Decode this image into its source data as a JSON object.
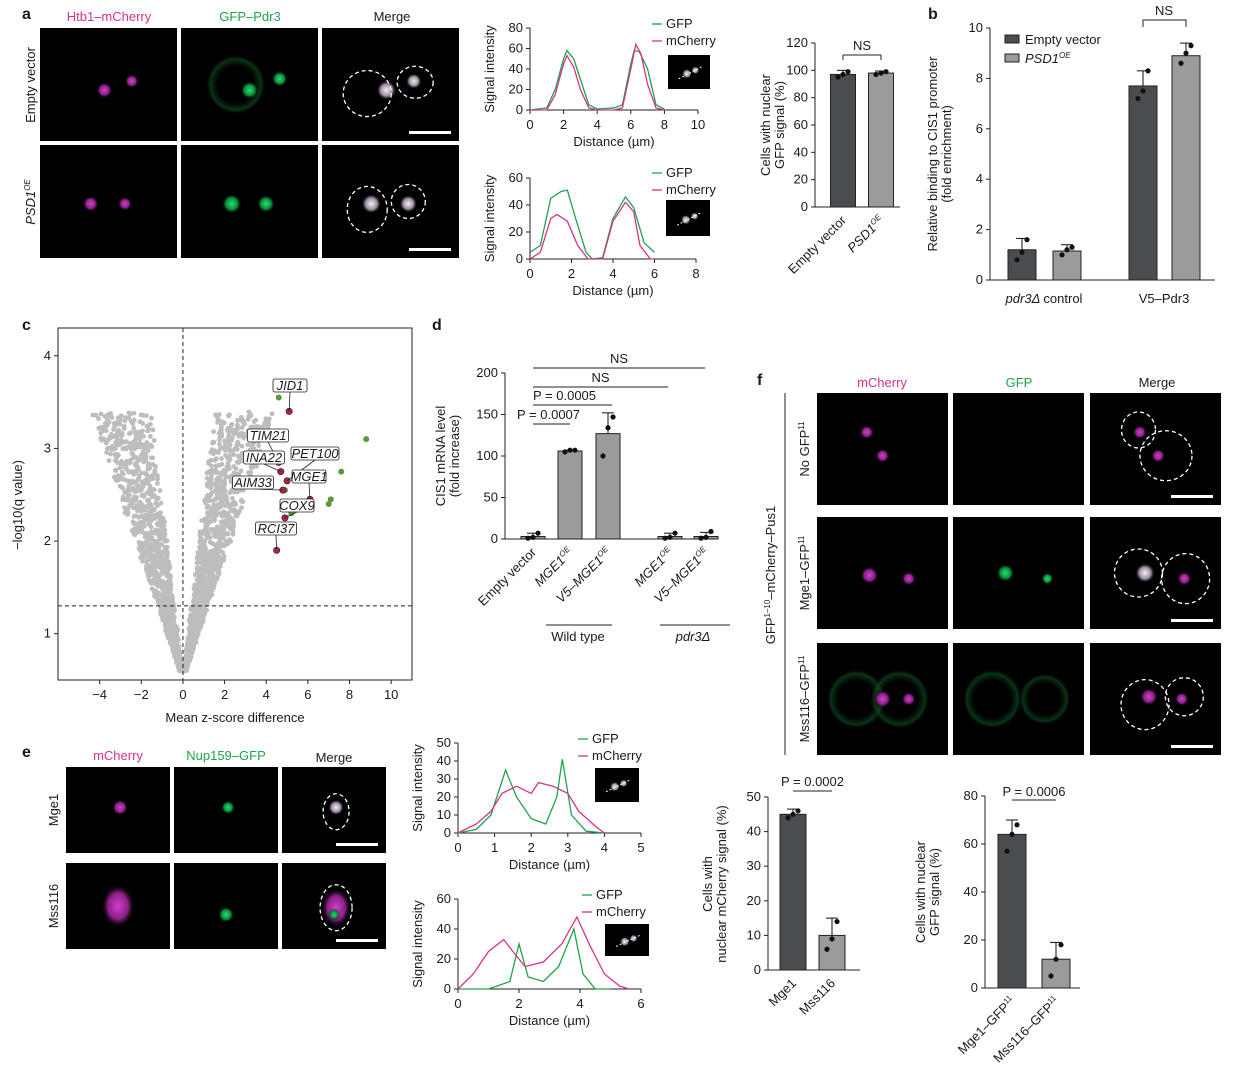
{
  "colors": {
    "gfp": "#1ea34a",
    "mcherry": "#d6338a",
    "bar_dark": "#4a4d50",
    "bar_light": "#9b9b9b",
    "scatter": "#bdbdbd",
    "hit_green": "#5a9a3c",
    "hit_red": "#b0204a"
  },
  "panel_a": {
    "letter": "a",
    "col_labels": [
      "Htb1–mCherry",
      "GFP–Pdr3",
      "Merge"
    ],
    "row_labels": [
      "Empty vector",
      "PSD1"
    ],
    "row2_sup": "OE"
  },
  "panel_b": {
    "letter": "b"
  },
  "panel_c": {
    "letter": "c"
  },
  "panel_d": {
    "letter": "d"
  },
  "panel_e": {
    "letter": "e",
    "col_labels": [
      "mCherry",
      "Nup159–GFP",
      "Merge"
    ],
    "row_labels": [
      "Mge1",
      "Mss116"
    ]
  },
  "panel_f": {
    "letter": "f",
    "col_labels": [
      "mCherry",
      "GFP",
      "Merge"
    ],
    "row_labels": [
      "No GFP",
      "Mge1–GFP",
      "Mss116–GFP"
    ],
    "row_sup": "11",
    "side_label": "GFP",
    "side_sup": "1–10",
    "side_label2": "–mCherry–Pus1"
  },
  "chart_data": [
    {
      "id": "a_profile_1",
      "type": "line",
      "xlabel": "Distance (µm)",
      "ylabel": "Signal intensity",
      "xlim": [
        0,
        10
      ],
      "ylim": [
        0,
        80
      ],
      "xticks": [
        0,
        2,
        4,
        6,
        8,
        10
      ],
      "yticks": [
        0,
        20,
        40,
        60,
        80
      ],
      "legend": "top-right",
      "series": [
        {
          "name": "GFP",
          "color": "#1ea34a",
          "points": [
            [
              0,
              0
            ],
            [
              1,
              2
            ],
            [
              1.5,
              20
            ],
            [
              2,
              50
            ],
            [
              2.2,
              58
            ],
            [
              2.6,
              50
            ],
            [
              3,
              30
            ],
            [
              3.5,
              5
            ],
            [
              4,
              1
            ],
            [
              5,
              2
            ],
            [
              5.5,
              5
            ],
            [
              6,
              45
            ],
            [
              6.2,
              58
            ],
            [
              6.5,
              57
            ],
            [
              7,
              40
            ],
            [
              7.5,
              5
            ],
            [
              8,
              1
            ]
          ]
        },
        {
          "name": "mCherry",
          "color": "#d6338a",
          "points": [
            [
              0,
              0
            ],
            [
              1,
              0
            ],
            [
              1.5,
              15
            ],
            [
              2,
              45
            ],
            [
              2.2,
              53
            ],
            [
              2.6,
              42
            ],
            [
              3,
              20
            ],
            [
              3.5,
              2
            ],
            [
              4,
              0
            ],
            [
              5,
              0
            ],
            [
              5.5,
              2
            ],
            [
              6,
              40
            ],
            [
              6.3,
              64
            ],
            [
              6.6,
              55
            ],
            [
              7,
              25
            ],
            [
              7.5,
              2
            ],
            [
              8,
              0
            ]
          ]
        }
      ]
    },
    {
      "id": "a_profile_2",
      "type": "line",
      "xlabel": "Distance (µm)",
      "ylabel": "Signal intensity",
      "xlim": [
        0,
        8
      ],
      "ylim": [
        0,
        60
      ],
      "xticks": [
        0,
        2,
        4,
        6,
        8
      ],
      "yticks": [
        0,
        20,
        40,
        60
      ],
      "legend": "top-right",
      "series": [
        {
          "name": "GFP",
          "color": "#1ea34a",
          "points": [
            [
              0,
              5
            ],
            [
              0.5,
              10
            ],
            [
              1,
              45
            ],
            [
              1.5,
              50
            ],
            [
              1.8,
              51
            ],
            [
              2.2,
              30
            ],
            [
              2.7,
              5
            ],
            [
              3,
              0
            ],
            [
              3.5,
              1
            ],
            [
              4,
              30
            ],
            [
              4.6,
              46
            ],
            [
              5,
              38
            ],
            [
              5.5,
              12
            ],
            [
              6,
              5
            ]
          ]
        },
        {
          "name": "mCherry",
          "color": "#d6338a",
          "points": [
            [
              0,
              0
            ],
            [
              0.5,
              5
            ],
            [
              1,
              30
            ],
            [
              1.3,
              33
            ],
            [
              1.8,
              28
            ],
            [
              2.3,
              10
            ],
            [
              2.8,
              0
            ],
            [
              3.5,
              0
            ],
            [
              4,
              28
            ],
            [
              4.6,
              42
            ],
            [
              5,
              35
            ],
            [
              5.3,
              10
            ],
            [
              5.8,
              0
            ],
            [
              6,
              0
            ]
          ]
        }
      ]
    },
    {
      "id": "a_bar",
      "type": "bar",
      "ylabel": "Cells with nuclear GFP signal (%)",
      "ylim": [
        0,
        120
      ],
      "yticks": [
        0,
        20,
        40,
        60,
        80,
        100,
        120
      ],
      "categories": [
        "Empty vector",
        "PSD1"
      ],
      "category_sup": [
        "",
        "OE"
      ],
      "values": [
        97,
        98
      ],
      "errors": [
        3,
        1.5
      ],
      "points": [
        [
          95,
          97,
          99
        ],
        [
          97,
          98,
          99
        ]
      ],
      "bar_colors": [
        "#4a4d50",
        "#9b9b9b"
      ],
      "annotations": [
        "NS"
      ]
    },
    {
      "id": "b_bar",
      "type": "bar",
      "ylabel": "Relative binding to CIS1 promoter (fold enrichment)",
      "ylim": [
        0,
        10
      ],
      "yticks": [
        0,
        2,
        4,
        6,
        8,
        10
      ],
      "groups": [
        "pdr3Δ control",
        "V5–Pdr3"
      ],
      "series": [
        {
          "name": "Empty vector",
          "color": "#4a4d50",
          "values": [
            1.2,
            7.7
          ],
          "errors": [
            0.45,
            0.6
          ],
          "points": [
            [
              0.8,
              1.1,
              1.6
            ],
            [
              7.2,
              7.5,
              8.3
            ]
          ]
        },
        {
          "name": "PSD1",
          "sup": "OE",
          "color": "#9b9b9b",
          "values": [
            1.15,
            8.9
          ],
          "errors": [
            0.25,
            0.5
          ],
          "points": [
            [
              1.0,
              1.2,
              1.3
            ],
            [
              8.6,
              9.0,
              9.3
            ]
          ]
        }
      ],
      "legend": "top-left",
      "annotations": [
        "NS"
      ]
    },
    {
      "id": "c_volcano",
      "type": "scatter",
      "xlabel": "Mean z-score difference",
      "ylabel": "−log10(q value)",
      "xlim": [
        -6,
        11
      ],
      "ylim": [
        0.5,
        4.3
      ],
      "xticks": [
        -4,
        -2,
        0,
        2,
        4,
        6,
        8,
        10
      ],
      "yticks": [
        1,
        2,
        3,
        4
      ],
      "thresholds": {
        "x": 0,
        "y": 1.3
      },
      "highlighted": [
        {
          "label": "JID1",
          "x": 5.1,
          "y": 3.4
        },
        {
          "label": "TIM21",
          "x": 4.6,
          "y": 2.9
        },
        {
          "label": "INA22",
          "x": 4.5,
          "y": 2.75
        },
        {
          "label": "PET100",
          "x": 7.0,
          "y": 2.85
        },
        {
          "label": "MGE1",
          "x": 6.0,
          "y": 2.45
        },
        {
          "label": "AIM33",
          "x": 4.8,
          "y": 2.6
        },
        {
          "label": "COX9",
          "x": 4.9,
          "y": 2.45
        },
        {
          "label": "RCI37",
          "x": 4.5,
          "y": 1.9
        }
      ],
      "green_points": [
        [
          4.6,
          3.55
        ],
        [
          8.8,
          3.1
        ],
        [
          7.6,
          2.75
        ],
        [
          7.1,
          2.45
        ],
        [
          7.0,
          2.4
        ],
        [
          6.2,
          2.7
        ],
        [
          4.9,
          2.55
        ],
        [
          5.2,
          2.3
        ]
      ],
      "red_points": [
        [
          5.1,
          3.4
        ],
        [
          4.6,
          2.85
        ],
        [
          4.7,
          2.75
        ],
        [
          5.0,
          2.65
        ],
        [
          6.1,
          2.45
        ],
        [
          4.8,
          2.55
        ],
        [
          4.9,
          2.25
        ],
        [
          4.5,
          1.9
        ]
      ]
    },
    {
      "id": "d_bar",
      "type": "bar",
      "ylabel": "CIS1 mRNA level (fold increase)",
      "ylim": [
        0,
        200
      ],
      "yticks": [
        0,
        50,
        100,
        150,
        200
      ],
      "categories": [
        "Empty vector",
        "MGE1",
        "V5–MGE1",
        "MGE1",
        "V5–MGE1"
      ],
      "category_sup": [
        "",
        "OE",
        "OE",
        "OE",
        "OE"
      ],
      "values": [
        3,
        106,
        127,
        3,
        3
      ],
      "errors": [
        4,
        1,
        25,
        4,
        5
      ],
      "points": [
        [
          1,
          2,
          7
        ],
        [
          105,
          107,
          107
        ],
        [
          100,
          134,
          147
        ],
        [
          1,
          2,
          7
        ],
        [
          1,
          2,
          9
        ]
      ],
      "groups": [
        "Wild type",
        "pdr3Δ"
      ],
      "annotations": [
        "NS",
        "NS",
        "P = 0.0005",
        "P = 0.0007"
      ]
    },
    {
      "id": "e_profile_1",
      "type": "line",
      "xlabel": "Distance (µm)",
      "ylabel": "Signal intensity",
      "xlim": [
        0,
        5
      ],
      "ylim": [
        0,
        50
      ],
      "xticks": [
        0,
        1,
        2,
        3,
        4,
        5
      ],
      "yticks": [
        0,
        10,
        20,
        30,
        40,
        50
      ],
      "legend": "top-right",
      "series": [
        {
          "name": "GFP",
          "color": "#1ea34a",
          "points": [
            [
              0,
              0
            ],
            [
              0.5,
              2
            ],
            [
              0.9,
              10
            ],
            [
              1.3,
              35
            ],
            [
              1.6,
              20
            ],
            [
              2,
              8
            ],
            [
              2.4,
              5
            ],
            [
              2.7,
              20
            ],
            [
              2.85,
              41
            ],
            [
              3.1,
              10
            ],
            [
              3.5,
              1
            ],
            [
              4,
              0
            ]
          ]
        },
        {
          "name": "mCherry",
          "color": "#d6338a",
          "points": [
            [
              0,
              0
            ],
            [
              0.5,
              5
            ],
            [
              0.9,
              12
            ],
            [
              1.2,
              22
            ],
            [
              1.6,
              26
            ],
            [
              2,
              22
            ],
            [
              2.2,
              28
            ],
            [
              2.6,
              26
            ],
            [
              3,
              22
            ],
            [
              3.3,
              12
            ],
            [
              3.8,
              3
            ],
            [
              4,
              0
            ]
          ]
        }
      ]
    },
    {
      "id": "e_profile_2",
      "type": "line",
      "xlabel": "Distance (µm)",
      "ylabel": "Signal intensity",
      "xlim": [
        0,
        6
      ],
      "ylim": [
        0,
        60
      ],
      "xticks": [
        0,
        2,
        4,
        6
      ],
      "yticks": [
        0,
        20,
        40,
        60
      ],
      "legend": "top-right",
      "series": [
        {
          "name": "GFP",
          "color": "#1ea34a",
          "points": [
            [
              0,
              0
            ],
            [
              1,
              0
            ],
            [
              1.7,
              5
            ],
            [
              2,
              30
            ],
            [
              2.3,
              8
            ],
            [
              2.8,
              5
            ],
            [
              3.3,
              15
            ],
            [
              3.8,
              40
            ],
            [
              4.1,
              10
            ],
            [
              4.5,
              0
            ],
            [
              5,
              0
            ]
          ]
        },
        {
          "name": "mCherry",
          "color": "#d6338a",
          "points": [
            [
              0,
              0
            ],
            [
              0.5,
              10
            ],
            [
              1,
              25
            ],
            [
              1.5,
              33
            ],
            [
              1.8,
              25
            ],
            [
              2.2,
              15
            ],
            [
              2.8,
              18
            ],
            [
              3.4,
              30
            ],
            [
              3.9,
              48
            ],
            [
              4.3,
              30
            ],
            [
              4.8,
              10
            ],
            [
              5.3,
              2
            ],
            [
              5.6,
              0
            ]
          ]
        }
      ]
    },
    {
      "id": "f_bar_1",
      "type": "bar",
      "ylabel": "Cells with nuclear mCherry signal (%)",
      "ylim": [
        0,
        50
      ],
      "yticks": [
        0,
        10,
        20,
        30,
        40,
        50
      ],
      "categories": [
        "Mge1",
        "Mss116"
      ],
      "category_sup": [
        "",
        ""
      ],
      "values": [
        45,
        10
      ],
      "errors": [
        1.5,
        5
      ],
      "points": [
        [
          44,
          45,
          46
        ],
        [
          6,
          9,
          14
        ]
      ],
      "bar_colors": [
        "#4a4d50",
        "#9b9b9b"
      ],
      "annotations": [
        "P = 0.0002"
      ]
    },
    {
      "id": "f_bar_2",
      "type": "bar",
      "ylabel": "Cells with nuclear GFP signal (%)",
      "ylim": [
        0,
        80
      ],
      "yticks": [
        0,
        20,
        40,
        60,
        80
      ],
      "categories": [
        "Mge1–GFP",
        "Mss116–GFP"
      ],
      "category_sup": [
        "11",
        "11"
      ],
      "values": [
        64,
        12
      ],
      "errors": [
        6,
        7
      ],
      "points": [
        [
          57,
          64,
          68
        ],
        [
          5,
          12,
          18
        ]
      ],
      "bar_colors": [
        "#4a4d50",
        "#9b9b9b"
      ],
      "annotations": [
        "P = 0.0006"
      ]
    }
  ]
}
